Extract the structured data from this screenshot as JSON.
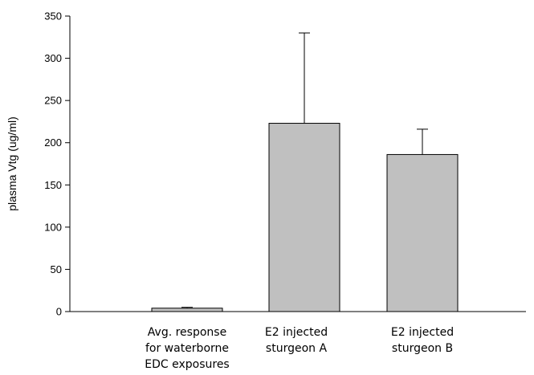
{
  "chart_data": {
    "type": "bar",
    "categories": [
      [
        "Avg. response",
        "for waterborne",
        "EDC exposures"
      ],
      [
        "E2 injected",
        "sturgeon A"
      ],
      [
        "E2 injected",
        "sturgeon B"
      ]
    ],
    "values": [
      4,
      223,
      186
    ],
    "error_upper": [
      1,
      107,
      30
    ],
    "title": "",
    "xlabel": "",
    "ylabel": "plasma Vtg (ug/ml)",
    "ylim": [
      0,
      350
    ],
    "yticks": [
      0,
      50,
      100,
      150,
      200,
      250,
      300,
      350
    ],
    "grid": false,
    "legend": "none",
    "bar_color": "#c0c0c0",
    "edge_color": "#000000"
  }
}
